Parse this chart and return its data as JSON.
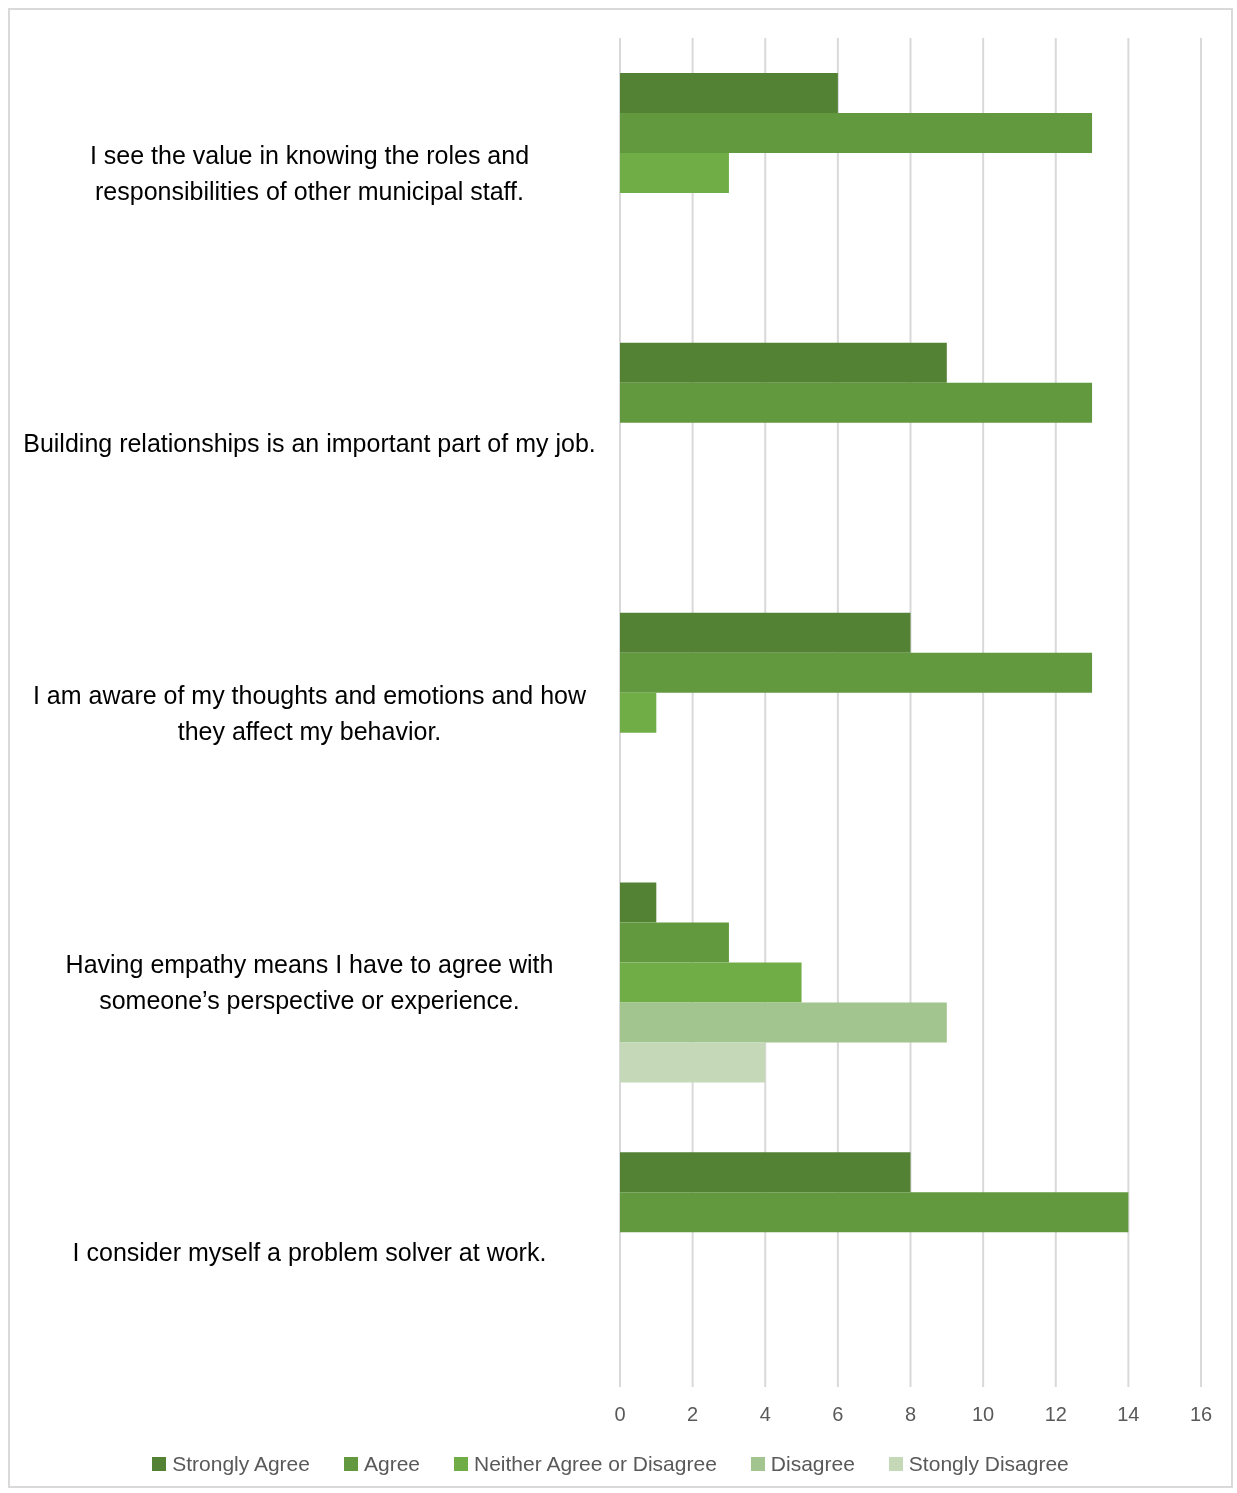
{
  "chart_data": {
    "type": "bar",
    "orientation": "horizontal",
    "categories": [
      "I see the value in knowing the roles and responsibilities of other municipal staff.",
      "Building relationships is an important part of my job.",
      "I am aware of my thoughts and emotions and how they affect my behavior.",
      "Having empathy means I have to agree with someone’s perspective or experience.",
      "I consider myself a problem solver at work."
    ],
    "series": [
      {
        "name": "Strongly Agree",
        "color": "#548235",
        "values": [
          6,
          9,
          8,
          1,
          8
        ]
      },
      {
        "name": "Agree",
        "color": "#62993e",
        "values": [
          13,
          13,
          13,
          3,
          14
        ]
      },
      {
        "name": "Neither Agree or Disagree",
        "color": "#70ad47",
        "values": [
          3,
          0,
          1,
          5,
          0
        ]
      },
      {
        "name": "Disagree",
        "color": "#a2c48e",
        "values": [
          0,
          0,
          0,
          9,
          0
        ]
      },
      {
        "name": "Stongly Disagree",
        "color": "#c5d9b8",
        "values": [
          0,
          0,
          0,
          4,
          0
        ]
      }
    ],
    "xlim": [
      0,
      16
    ],
    "xticks": [
      0,
      2,
      4,
      6,
      8,
      10,
      12,
      14,
      16
    ],
    "grid": "x",
    "legend": "bottom"
  }
}
